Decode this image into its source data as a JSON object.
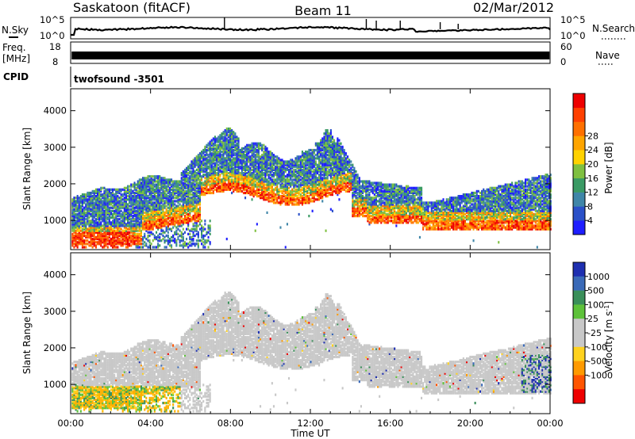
{
  "header": {
    "station": "Saskatoon (fitACF)",
    "beam": "Beam 11",
    "date": "02/Mar/2012"
  },
  "panels": {
    "nsky_label": "N.Sky",
    "nsearch_label": "N.Search",
    "nsky_ticks": [
      "10^5",
      "10^0"
    ],
    "nsearch_ticks": [
      "10^5",
      "10^0"
    ],
    "freq_label": "Freq.",
    "freq_unit": "[MHz]",
    "freq_ticks": [
      "18",
      "8"
    ],
    "nave_label": "Nave",
    "nave_ticks": [
      "60",
      "0"
    ],
    "cpid_label": "CPID",
    "cpid_value": "twofsound -3501"
  },
  "chart_data": [
    {
      "type": "heatmap",
      "name": "power",
      "ylabel": "Slant Range [km]",
      "xlabel": "",
      "y_ticks": [
        1000,
        2000,
        3000,
        4000
      ],
      "ylim": [
        200,
        4600
      ],
      "xlim_hours": [
        0,
        24
      ],
      "colorbar": {
        "label": "Power [dB]",
        "ticks": [
          "4",
          "8",
          "12",
          "16",
          "20",
          "24",
          "28"
        ],
        "colors": [
          "#1e1eff",
          "#2a50c8",
          "#3f86a8",
          "#3a9a64",
          "#7fc040",
          "#ffd200",
          "#ffa500",
          "#ff7000",
          "#ff4000",
          "#ee0000"
        ]
      }
    },
    {
      "type": "heatmap",
      "name": "velocity",
      "ylabel": "Slant Range [km]",
      "xlabel": "Time UT",
      "y_ticks": [
        1000,
        2000,
        3000,
        4000
      ],
      "ylim": [
        200,
        4600
      ],
      "x_ticks": [
        "00:00",
        "04:00",
        "08:00",
        "12:00",
        "16:00",
        "20:00",
        "00:00"
      ],
      "xlim_hours": [
        0,
        24
      ],
      "colorbar": {
        "label": "Velocity [m s^-1]",
        "ticks": [
          "1000",
          "500",
          "100",
          "25",
          "-25",
          "-100",
          "-500",
          "-1000"
        ],
        "colors": [
          "#1e2fb0",
          "#3a6ab8",
          "#3a8f5a",
          "#5ec23a",
          "#c8c8c8",
          "#c8c8c8",
          "#ffd21e",
          "#ff9a00",
          "#ff5500",
          "#ee0000"
        ]
      }
    }
  ]
}
